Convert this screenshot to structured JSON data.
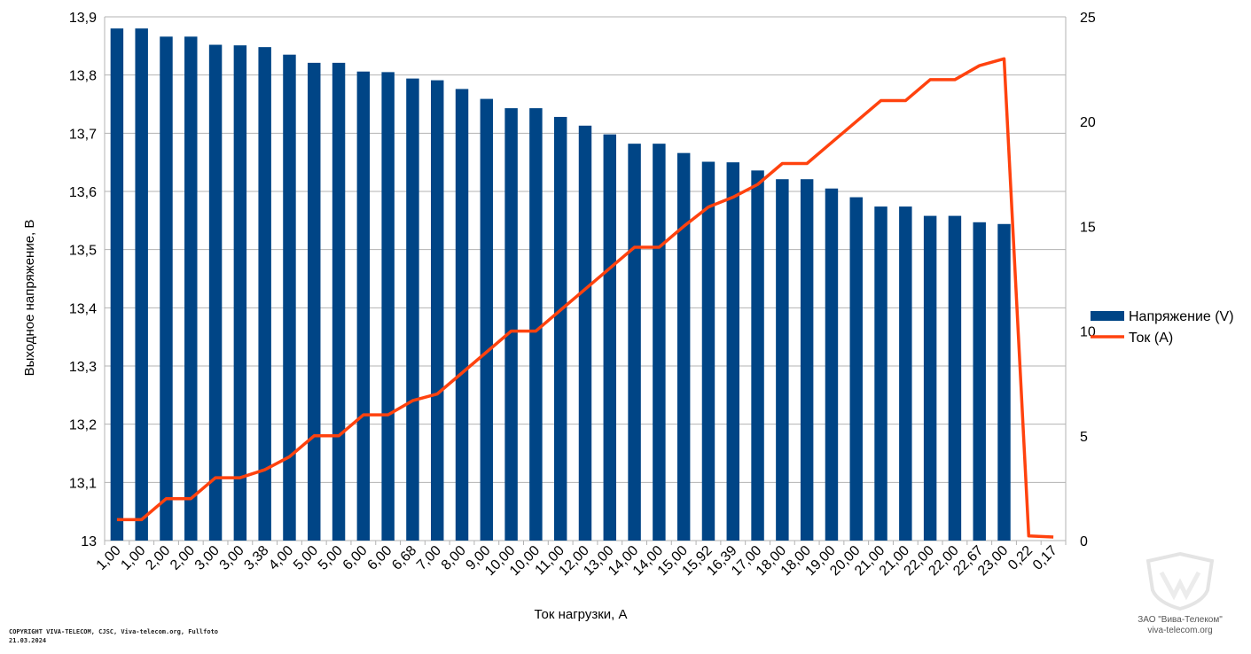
{
  "chart_data": {
    "type": "bar+line",
    "categories": [
      "1,00",
      "1,00",
      "2,00",
      "2,00",
      "3,00",
      "3,00",
      "3,38",
      "4,00",
      "5,00",
      "5,00",
      "6,00",
      "6,00",
      "6,68",
      "7,00",
      "8,00",
      "9,00",
      "10,00",
      "10,00",
      "11,00",
      "12,00",
      "13,00",
      "14,00",
      "14,00",
      "15,00",
      "15,92",
      "16,39",
      "17,00",
      "18,00",
      "18,00",
      "19,00",
      "20,00",
      "21,00",
      "21,00",
      "22,00",
      "22,00",
      "22,67",
      "23,00",
      "0,22",
      "0,17"
    ],
    "series": [
      {
        "name": "Напряжение (V)",
        "type": "bar",
        "axis": "left",
        "color": "#004586",
        "values": [
          13.88,
          13.88,
          13.866,
          13.866,
          13.852,
          13.851,
          13.848,
          13.835,
          13.821,
          13.821,
          13.806,
          13.805,
          13.794,
          13.791,
          13.776,
          13.759,
          13.743,
          13.743,
          13.728,
          13.713,
          13.698,
          13.682,
          13.682,
          13.666,
          13.651,
          13.65,
          13.636,
          13.621,
          13.621,
          13.605,
          13.59,
          13.574,
          13.574,
          13.558,
          13.558,
          13.547,
          13.544,
          null,
          null
        ]
      },
      {
        "name": "Ток (A)",
        "type": "line",
        "axis": "right",
        "color": "#ff420e",
        "values": [
          1,
          1,
          2,
          2,
          3,
          3,
          3.38,
          4,
          5,
          5,
          6,
          6,
          6.68,
          7,
          8,
          9,
          10,
          10,
          11,
          12,
          13,
          14,
          14,
          15,
          15.92,
          16.39,
          17,
          18,
          18,
          19,
          20,
          21,
          21,
          22,
          22,
          22.67,
          23,
          0.22,
          0.17
        ]
      }
    ],
    "y_left": {
      "min": 13,
      "max": 13.9,
      "ticks": [
        {
          "v": 13,
          "label": "13"
        },
        {
          "v": 13.1,
          "label": "13,1"
        },
        {
          "v": 13.2,
          "label": "13,2"
        },
        {
          "v": 13.3,
          "label": "13,3"
        },
        {
          "v": 13.4,
          "label": "13,4"
        },
        {
          "v": 13.5,
          "label": "13,5"
        },
        {
          "v": 13.6,
          "label": "13,6"
        },
        {
          "v": 13.7,
          "label": "13,7"
        },
        {
          "v": 13.8,
          "label": "13,8"
        },
        {
          "v": 13.9,
          "label": "13,9"
        }
      ]
    },
    "y_right": {
      "min": 0,
      "max": 25,
      "ticks": [
        {
          "v": 0,
          "label": "0"
        },
        {
          "v": 5,
          "label": "5"
        },
        {
          "v": 10,
          "label": "10"
        },
        {
          "v": 15,
          "label": "15"
        },
        {
          "v": 20,
          "label": "20"
        },
        {
          "v": 25,
          "label": "25"
        }
      ]
    },
    "xlabel": "Ток нагрузки, А",
    "ylabel": "Выходное напряжение, В",
    "grid": true,
    "legend_position": "right"
  },
  "footer": {
    "copyright_line1": "COPYRIGHT VIVA-TELECOM, CJSC, Viva-telecom.org, Fullfoto",
    "copyright_line2": "21.03.2024"
  },
  "watermark": {
    "company": "ЗАО \"Вива-Телеком\"",
    "site": "viva-telecom.org"
  },
  "colors": {
    "grid": "#b3b3b3",
    "axis": "#b3b3b3"
  }
}
